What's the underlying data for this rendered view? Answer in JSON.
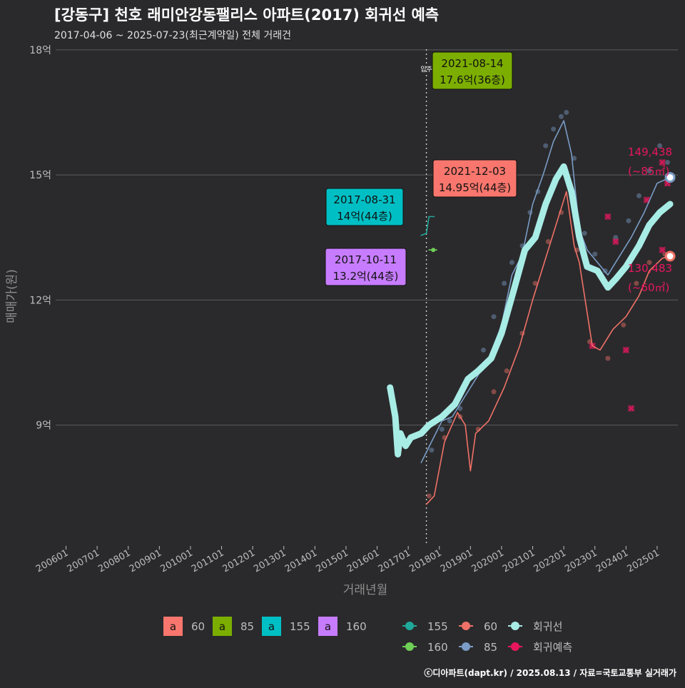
{
  "title": "[강동구] 천호 래미안강동팰리스 아파트(2017) 회귀선 예측",
  "subtitle": "2017-04-06 ~ 2025-07-23(최근계약일) 전체 거래건",
  "credit": "ⓒ디아파트(dapt.kr) / 2025.08.13 / 자료=국토교통부 실거래가",
  "colors": {
    "background": "#2a2a2c",
    "grid": "#5a5a5e",
    "area60": "#f07167",
    "area85": "#7a9cc6",
    "area155": "#1fa99b",
    "area160": "#6fcf57",
    "regression": "#a8ece6",
    "forecast": "#e8175d",
    "label60": "#f8766d",
    "label85": "#7cae00",
    "label155": "#00bfc4",
    "label160": "#c77cff"
  },
  "chart_data": {
    "type": "line",
    "xlabel": "거래년월",
    "ylabel": "매매가(원)",
    "x_ticks": [
      "200601",
      "200701",
      "200801",
      "200901",
      "201001",
      "201101",
      "201201",
      "201301",
      "201401",
      "201501",
      "201601",
      "201701",
      "201801",
      "201901",
      "202001",
      "202101",
      "202201",
      "202301",
      "202401",
      "202501"
    ],
    "y_ticks": [
      "9억",
      "12억",
      "15억",
      "18억"
    ],
    "y_tick_values": [
      9,
      12,
      15,
      18
    ],
    "ylim": [
      6.1,
      18.1
    ],
    "xlim": [
      "2005-09",
      "2025-09"
    ],
    "move_in": {
      "label": "입주",
      "x": "2017-08"
    },
    "series": [
      {
        "name": "회귀선",
        "points": [
          [
            "2016-06",
            9.9
          ],
          [
            "2016-08",
            9.2
          ],
          [
            "2016-09",
            8.3
          ],
          [
            "2016-10",
            8.8
          ],
          [
            "2016-12",
            8.5
          ],
          [
            "2017-02",
            8.7
          ],
          [
            "2017-06",
            8.8
          ],
          [
            "2017-09",
            9.0
          ],
          [
            "2018-02",
            9.2
          ],
          [
            "2018-07",
            9.5
          ],
          [
            "2018-12",
            10.1
          ],
          [
            "2019-04",
            10.3
          ],
          [
            "2019-09",
            10.6
          ],
          [
            "2020-01",
            11.2
          ],
          [
            "2020-06",
            12.3
          ],
          [
            "2020-10",
            13.2
          ],
          [
            "2021-02",
            13.5
          ],
          [
            "2021-06",
            14.3
          ],
          [
            "2021-10",
            14.9
          ],
          [
            "2022-01",
            15.2
          ],
          [
            "2022-04",
            14.6
          ],
          [
            "2022-07",
            13.5
          ],
          [
            "2022-10",
            12.8
          ],
          [
            "2023-02",
            12.7
          ],
          [
            "2023-06",
            12.3
          ],
          [
            "2023-09",
            12.5
          ],
          [
            "2024-01",
            12.8
          ],
          [
            "2024-06",
            13.3
          ],
          [
            "2024-10",
            13.8
          ],
          [
            "2025-02",
            14.1
          ],
          [
            "2025-06",
            14.3
          ]
        ]
      },
      {
        "name": "85",
        "points": [
          [
            "2017-06",
            8.1
          ],
          [
            "2017-10",
            8.6
          ],
          [
            "2018-02",
            9.1
          ],
          [
            "2018-06",
            9.2
          ],
          [
            "2018-10",
            9.6
          ],
          [
            "2019-03",
            10.1
          ],
          [
            "2019-08",
            10.6
          ],
          [
            "2020-01",
            11.4
          ],
          [
            "2020-05",
            12.6
          ],
          [
            "2020-09",
            13.1
          ],
          [
            "2021-01",
            14.3
          ],
          [
            "2021-05",
            15.0
          ],
          [
            "2021-09",
            15.8
          ],
          [
            "2022-01",
            16.3
          ],
          [
            "2022-04",
            15.5
          ],
          [
            "2022-07",
            13.7
          ],
          [
            "2022-10",
            13.2
          ],
          [
            "2023-02",
            12.9
          ],
          [
            "2023-06",
            12.6
          ],
          [
            "2023-10",
            13.0
          ],
          [
            "2024-03",
            13.5
          ],
          [
            "2024-08",
            14.1
          ],
          [
            "2025-01",
            14.8
          ],
          [
            "2025-06",
            14.94
          ]
        ]
      },
      {
        "name": "60",
        "points": [
          [
            "2017-08",
            7.1
          ],
          [
            "2017-11",
            7.3
          ],
          [
            "2018-03",
            8.6
          ],
          [
            "2018-08",
            9.3
          ],
          [
            "2018-11",
            9.0
          ],
          [
            "2019-01",
            7.9
          ],
          [
            "2019-03",
            8.8
          ],
          [
            "2019-08",
            9.1
          ],
          [
            "2020-02",
            9.9
          ],
          [
            "2020-08",
            10.9
          ],
          [
            "2021-01",
            12.0
          ],
          [
            "2021-06",
            13.0
          ],
          [
            "2021-10",
            13.8
          ],
          [
            "2022-02",
            14.6
          ],
          [
            "2022-05",
            13.3
          ],
          [
            "2022-07",
            12.9
          ],
          [
            "2022-12",
            10.9
          ],
          [
            "2023-03",
            10.8
          ],
          [
            "2023-08",
            11.3
          ],
          [
            "2024-01",
            11.6
          ],
          [
            "2024-06",
            12.1
          ],
          [
            "2024-10",
            12.7
          ],
          [
            "2025-03",
            13.0
          ],
          [
            "2025-06",
            13.05
          ]
        ]
      },
      {
        "name": "155",
        "points": [
          [
            "2017-06",
            13.55
          ],
          [
            "2017-08",
            13.6
          ],
          [
            "2017-09",
            14.0
          ],
          [
            "2017-11",
            14.0
          ]
        ]
      },
      {
        "name": "160",
        "points": [
          [
            "2017-09",
            13.2
          ],
          [
            "2017-12",
            13.2
          ]
        ]
      }
    ],
    "scatter": [
      {
        "name": "85",
        "points": [
          [
            "2017-10",
            8.4
          ],
          [
            "2018-02",
            8.9
          ],
          [
            "2018-05",
            9.1
          ],
          [
            "2018-09",
            9.4
          ],
          [
            "2019-02",
            10.2
          ],
          [
            "2019-06",
            10.8
          ],
          [
            "2019-10",
            11.6
          ],
          [
            "2020-02",
            12.4
          ],
          [
            "2020-05",
            12.9
          ],
          [
            "2020-09",
            13.3
          ],
          [
            "2020-12",
            14.1
          ],
          [
            "2021-03",
            14.6
          ],
          [
            "2021-06",
            15.7
          ],
          [
            "2021-09",
            16.1
          ],
          [
            "2021-12",
            16.4
          ],
          [
            "2022-02",
            16.5
          ],
          [
            "2022-05",
            15.4
          ],
          [
            "2022-09",
            13.6
          ],
          [
            "2023-01",
            13.1
          ],
          [
            "2023-05",
            12.7
          ],
          [
            "2023-09",
            13.5
          ],
          [
            "2024-02",
            13.9
          ],
          [
            "2024-06",
            14.5
          ],
          [
            "2024-10",
            15.1
          ],
          [
            "2025-02",
            15.7
          ],
          [
            "2025-05",
            15.3
          ]
        ]
      },
      {
        "name": "60",
        "points": [
          [
            "2017-09",
            7.3
          ],
          [
            "2018-03",
            8.7
          ],
          [
            "2018-09",
            9.2
          ],
          [
            "2019-04",
            8.9
          ],
          [
            "2019-10",
            9.8
          ],
          [
            "2020-03",
            10.3
          ],
          [
            "2020-09",
            11.2
          ],
          [
            "2021-02",
            12.4
          ],
          [
            "2021-07",
            13.4
          ],
          [
            "2021-12",
            14.1
          ],
          [
            "2022-06",
            13.2
          ],
          [
            "2022-11",
            11.0
          ],
          [
            "2023-06",
            10.6
          ],
          [
            "2023-12",
            11.4
          ],
          [
            "2024-05",
            12.4
          ],
          [
            "2024-10",
            12.9
          ],
          [
            "2025-04",
            13.1
          ]
        ]
      },
      {
        "name": "회귀예측",
        "points": [
          [
            "2022-12",
            10.9
          ],
          [
            "2023-06",
            14.0
          ],
          [
            "2023-09",
            13.4
          ],
          [
            "2024-01",
            10.8
          ],
          [
            "2024-03",
            9.4
          ],
          [
            "2024-09",
            14.4
          ],
          [
            "2025-03",
            15.3
          ],
          [
            "2025-05",
            14.8
          ],
          [
            "2025-03",
            13.2
          ]
        ]
      }
    ],
    "annotations": [
      {
        "date": "2021-08-14",
        "text": "17.6억(36층)",
        "series": "85"
      },
      {
        "date": "2021-12-03",
        "text": "14.95억(44층)",
        "series": "60"
      },
      {
        "date": "2017-08-31",
        "text": "14억(44층)",
        "series": "155"
      },
      {
        "date": "2017-10-11",
        "text": "13.2억(44층)",
        "series": "160"
      }
    ],
    "end_labels": [
      {
        "value": "149,438",
        "area": "(~85㎡)",
        "series": "85"
      },
      {
        "value": "130,483",
        "area": "(~60㎡)",
        "series": "60"
      }
    ],
    "legend": {
      "position": "bottom",
      "fill_key_glyph": "a",
      "fill_keys": [
        "60",
        "85",
        "155",
        "160"
      ],
      "line_keys": [
        "155",
        "60",
        "회귀선",
        "160",
        "85",
        "회귀예측"
      ]
    }
  }
}
